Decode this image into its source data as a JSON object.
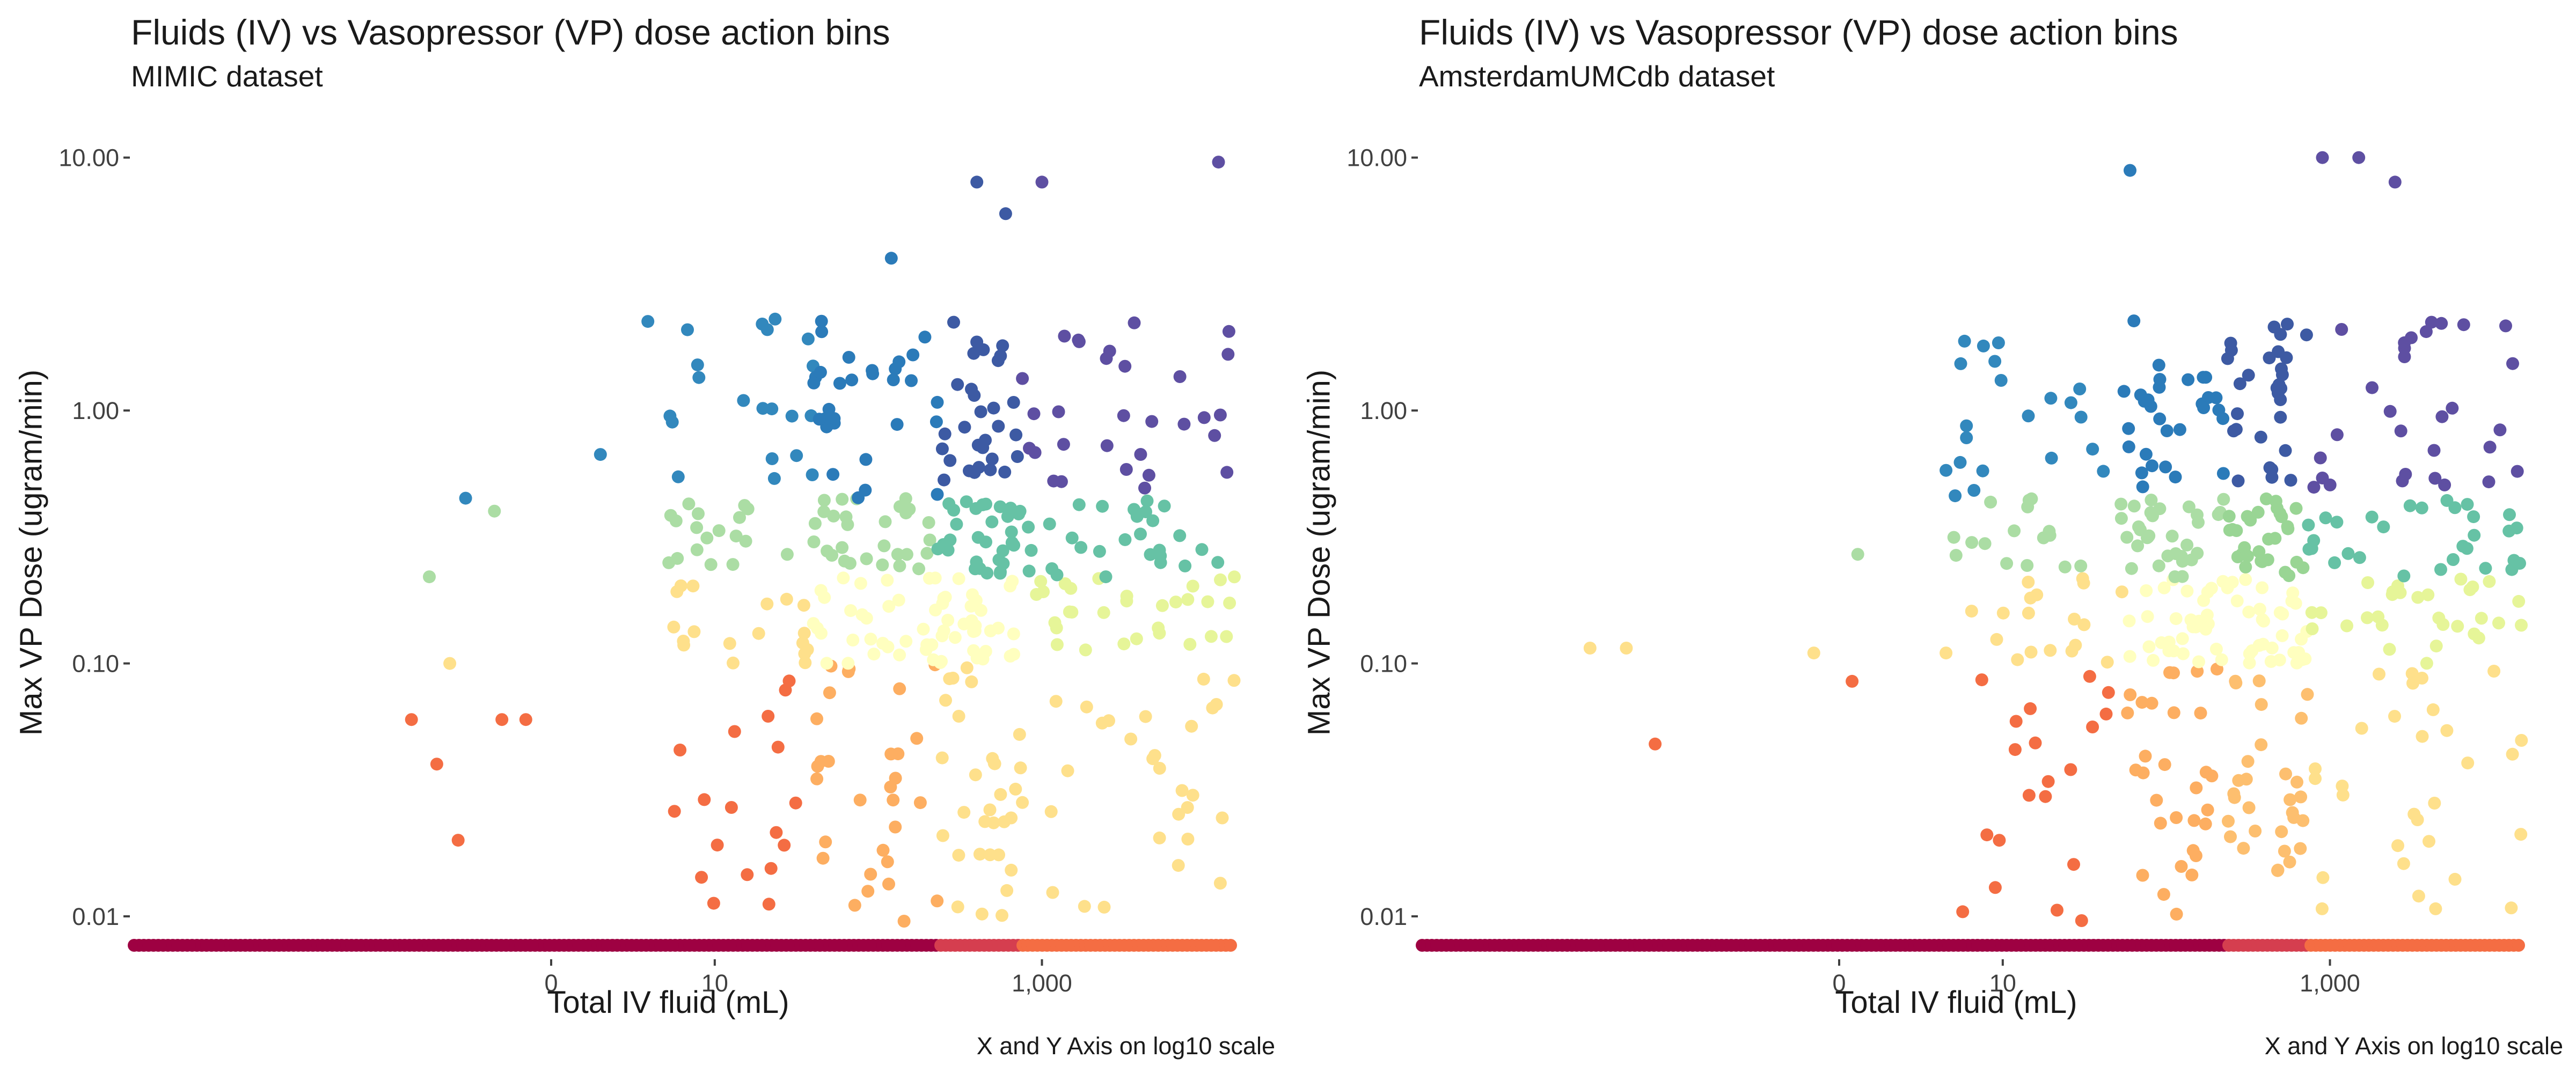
{
  "chart_data": [
    {
      "type": "scatter",
      "title": "Fluids (IV) vs Vasopressor (VP) dose action bins",
      "subtitle": "MIMIC dataset",
      "xlabel": "Total IV fluid (mL)",
      "ylabel": "Max VP Dose (ugram/min)",
      "caption": "X and Y Axis on log10 scale",
      "x_scale": "log10",
      "y_scale": "log10",
      "xlim": [
        0.0027,
        15000
      ],
      "ylim": [
        0.0067,
        13
      ],
      "x_ticks": [
        1,
        10,
        1000
      ],
      "x_tick_labels": [
        "0",
        "10",
        "1,000"
      ],
      "y_ticks": [
        0.01,
        0.1,
        1,
        10
      ],
      "y_tick_labels": [
        "0.01",
        "0.10",
        "1.00",
        "10.00"
      ],
      "grid": false,
      "legend": "none",
      "x_bin_edges": [
        0,
        40,
        230,
        730,
        15000
      ],
      "y_bin_edges": [
        0,
        0.009,
        0.1,
        0.22,
        0.45,
        13
      ],
      "palette": {
        "zero_dose": "#9e0142",
        "zero_dose_high_fluid": "#d53e4f",
        "zero_dose_top_fluid": "#f46d43",
        "low": [
          "#f46d43",
          "#fdae61",
          "#fee08b",
          "#fee08b"
        ],
        "mid": [
          "#fee08b",
          "#ffffbf",
          "#ffffbf",
          "#e6f598"
        ],
        "high": [
          "#abdda4",
          "#abdda4",
          "#66c2a5",
          "#66c2a5"
        ],
        "top": [
          "#3288bd",
          "#2b7bb9",
          "#3d5aa3",
          "#5e4fa2"
        ]
      },
      "outlier_points": [
        {
          "x": 0.24,
          "y": 0.1
        },
        {
          "x": 0.14,
          "y": 0.06
        },
        {
          "x": 0.2,
          "y": 0.04
        },
        {
          "x": 0.27,
          "y": 0.02
        },
        {
          "x": 0.5,
          "y": 0.06
        },
        {
          "x": 0.7,
          "y": 0.06
        },
        {
          "x": 0.3,
          "y": 0.45
        },
        {
          "x": 0.45,
          "y": 0.4
        },
        {
          "x": 0.18,
          "y": 0.22
        },
        {
          "x": 2.0,
          "y": 0.67
        },
        {
          "x": 3.9,
          "y": 2.25
        },
        {
          "x": 5.5,
          "y": 0.9
        },
        {
          "x": 8.0,
          "y": 1.35
        },
        {
          "x": 120,
          "y": 4.0
        },
        {
          "x": 600,
          "y": 6.0
        },
        {
          "x": 400,
          "y": 8.0
        },
        {
          "x": 1000,
          "y": 8.0
        },
        {
          "x": 12000,
          "y": 9.6
        }
      ],
      "points_per_cell": 30
    },
    {
      "type": "scatter",
      "title": "Fluids (IV) vs Vasopressor (VP) dose action bins",
      "subtitle": "AmsterdamUMCdb dataset",
      "xlabel": "Total IV fluid (mL)",
      "ylabel": "Max VP Dose (ugram/min)",
      "caption": "X and Y Axis on log10 scale",
      "x_scale": "log10",
      "y_scale": "log10",
      "xlim": [
        0.0027,
        15000
      ],
      "ylim": [
        0.0067,
        13
      ],
      "x_ticks": [
        1,
        10,
        1000
      ],
      "x_tick_labels": [
        "0",
        "10",
        "1,000"
      ],
      "y_ticks": [
        0.01,
        0.1,
        1,
        10
      ],
      "y_tick_labels": [
        "0.01",
        "0.10",
        "1.00",
        "10.00"
      ],
      "grid": false,
      "legend": "none",
      "x_bin_edges": [
        0,
        55,
        230,
        730,
        15000
      ],
      "y_bin_edges": [
        0,
        0.009,
        0.1,
        0.22,
        0.45,
        13
      ],
      "palette": {
        "zero_dose": "#9e0142",
        "zero_dose_high_fluid": "#d53e4f",
        "zero_dose_top_fluid": "#f46d43",
        "low": [
          "#f46d43",
          "#fdae61",
          "#fdbf6f",
          "#fee08b"
        ],
        "mid": [
          "#fee08b",
          "#ffffbf",
          "#ffffbf",
          "#e6f598"
        ],
        "high": [
          "#abdda4",
          "#abdda4",
          "#99d594",
          "#66c2a5"
        ],
        "top": [
          "#3288bd",
          "#2b7bb9",
          "#3d5aa3",
          "#5e4fa2"
        ]
      },
      "outlier_points": [
        {
          "x": 0.03,
          "y": 0.115
        },
        {
          "x": 0.05,
          "y": 0.115
        },
        {
          "x": 0.075,
          "y": 0.048
        },
        {
          "x": 0.7,
          "y": 0.11
        },
        {
          "x": 1.2,
          "y": 0.085
        },
        {
          "x": 1.3,
          "y": 0.27
        },
        {
          "x": 4.5,
          "y": 0.58
        },
        {
          "x": 6.0,
          "y": 0.78
        },
        {
          "x": 6.0,
          "y": 0.87
        },
        {
          "x": 4.5,
          "y": 0.11
        },
        {
          "x": 8.0,
          "y": 0.021
        },
        {
          "x": 9.0,
          "y": 0.013
        },
        {
          "x": 60,
          "y": 8.9
        },
        {
          "x": 900,
          "y": 10
        },
        {
          "x": 1500,
          "y": 10
        },
        {
          "x": 2500,
          "y": 8.0
        }
      ],
      "points_per_cell": 30
    }
  ]
}
